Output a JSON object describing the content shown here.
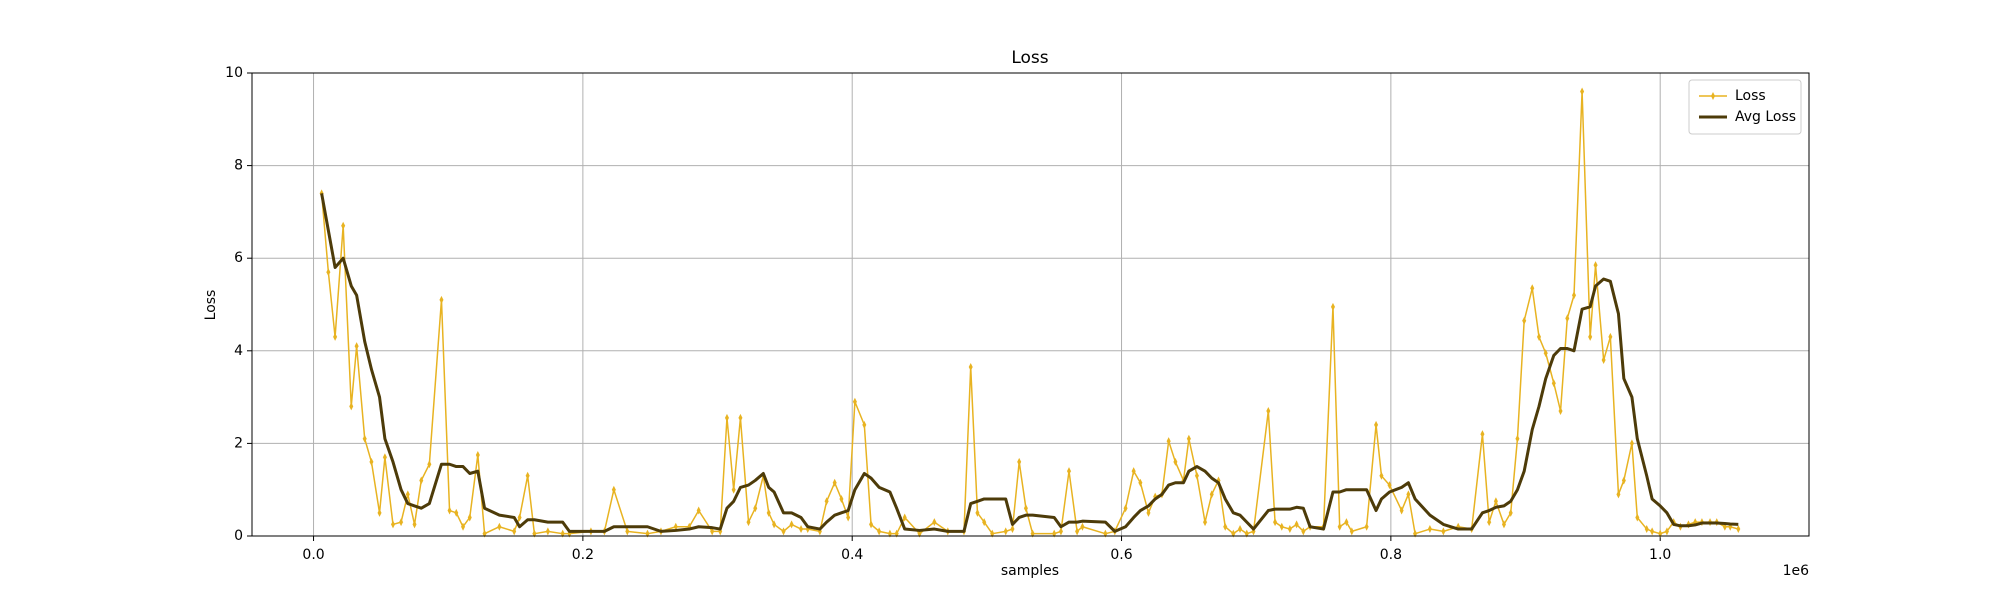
{
  "chart_data": {
    "type": "line",
    "title": "Loss",
    "xlabel": "samples",
    "ylabel": "Loss",
    "xaxis_offset": "1e6",
    "x": [
      6000,
      11000,
      16000,
      22000,
      28000,
      32000,
      38000,
      43000,
      49000,
      53000,
      59000,
      65000,
      70000,
      75000,
      80000,
      86000,
      95000,
      101000,
      106000,
      111000,
      116000,
      122000,
      127000,
      138000,
      149000,
      153000,
      159000,
      164000,
      174000,
      185000,
      190000,
      206000,
      216000,
      223000,
      233000,
      248000,
      258000,
      269000,
      279000,
      286000,
      296000,
      302000,
      307000,
      312000,
      317000,
      323000,
      328000,
      334000,
      338000,
      342000,
      349000,
      355000,
      362000,
      367000,
      376000,
      381000,
      387000,
      392000,
      397000,
      402000,
      409000,
      414000,
      420000,
      428000,
      433000,
      439000,
      450000,
      461000,
      471000,
      483000,
      488000,
      493000,
      498000,
      504000,
      514000,
      519000,
      524000,
      529000,
      534000,
      550000,
      555000,
      561000,
      567000,
      571000,
      588000,
      595000,
      603000,
      609000,
      614000,
      620000,
      625000,
      630000,
      635000,
      640000,
      646000,
      650000,
      656000,
      662000,
      667000,
      672000,
      677000,
      683000,
      688000,
      693000,
      698000,
      709000,
      714000,
      719000,
      725000,
      730000,
      735000,
      740000,
      750000,
      757000,
      762000,
      767000,
      771000,
      782000,
      789000,
      793000,
      799000,
      808000,
      813000,
      818000,
      829000,
      839000,
      850000,
      860000,
      868000,
      873000,
      878000,
      884000,
      889000,
      894000,
      899000,
      905000,
      910000,
      915000,
      921000,
      926000,
      931000,
      936000,
      942000,
      948000,
      952000,
      958000,
      963000,
      969000,
      973000,
      979000,
      983000,
      990000,
      994000,
      1000000,
      1005000,
      1010000,
      1015000,
      1021000,
      1026000,
      1031000,
      1037000,
      1042000,
      1048000,
      1052000,
      1058000
    ],
    "series": [
      {
        "name": "Loss",
        "color": "#e8b321",
        "marker": "diamond",
        "values": [
          7.4,
          5.7,
          4.3,
          6.7,
          2.8,
          4.1,
          2.1,
          1.6,
          0.5,
          1.7,
          0.25,
          0.3,
          0.9,
          0.25,
          1.2,
          1.55,
          5.1,
          0.55,
          0.5,
          0.2,
          0.4,
          1.75,
          0.05,
          0.2,
          0.1,
          0.4,
          1.3,
          0.05,
          0.1,
          0.05,
          0.05,
          0.1,
          0.1,
          1.0,
          0.1,
          0.05,
          0.1,
          0.2,
          0.2,
          0.55,
          0.1,
          0.1,
          2.55,
          1.0,
          2.55,
          0.3,
          0.6,
          1.3,
          0.5,
          0.25,
          0.1,
          0.25,
          0.15,
          0.15,
          0.1,
          0.75,
          1.15,
          0.8,
          0.4,
          2.9,
          2.4,
          0.25,
          0.1,
          0.05,
          0.05,
          0.4,
          0.05,
          0.3,
          0.1,
          0.1,
          3.65,
          0.5,
          0.3,
          0.05,
          0.1,
          0.15,
          1.6,
          0.6,
          0.05,
          0.05,
          0.1,
          1.4,
          0.1,
          0.2,
          0.05,
          0.1,
          0.6,
          1.4,
          1.15,
          0.5,
          0.85,
          0.9,
          2.05,
          1.6,
          1.2,
          2.1,
          1.3,
          0.3,
          0.9,
          1.2,
          0.2,
          0.05,
          0.15,
          0.05,
          0.1,
          2.7,
          0.3,
          0.2,
          0.15,
          0.25,
          0.1,
          0.2,
          0.2,
          4.95,
          0.2,
          0.3,
          0.1,
          0.2,
          2.4,
          1.3,
          1.1,
          0.55,
          0.9,
          0.05,
          0.15,
          0.1,
          0.2,
          0.15,
          2.2,
          0.3,
          0.75,
          0.25,
          0.5,
          2.1,
          4.65,
          5.35,
          4.3,
          3.95,
          3.3,
          2.7,
          4.7,
          5.2,
          9.6,
          4.3,
          5.85,
          3.8,
          4.3,
          0.9,
          1.2,
          2.0,
          0.4,
          0.15,
          0.1,
          0.05,
          0.1,
          0.3,
          0.2,
          0.25,
          0.3,
          0.3,
          0.3,
          0.3,
          0.2,
          0.2,
          0.15
        ]
      },
      {
        "name": "Avg Loss",
        "color": "#4d3b09",
        "values": [
          7.4,
          6.6,
          5.8,
          6.0,
          5.4,
          5.2,
          4.2,
          3.6,
          3.0,
          2.1,
          1.6,
          1.0,
          0.7,
          0.65,
          0.6,
          0.7,
          1.55,
          1.55,
          1.5,
          1.5,
          1.35,
          1.4,
          0.6,
          0.45,
          0.4,
          0.2,
          0.35,
          0.35,
          0.3,
          0.3,
          0.1,
          0.1,
          0.1,
          0.2,
          0.2,
          0.2,
          0.1,
          0.12,
          0.15,
          0.2,
          0.18,
          0.15,
          0.6,
          0.75,
          1.05,
          1.1,
          1.2,
          1.35,
          1.05,
          0.95,
          0.5,
          0.5,
          0.4,
          0.2,
          0.15,
          0.3,
          0.45,
          0.5,
          0.55,
          1.0,
          1.35,
          1.25,
          1.05,
          0.95,
          0.6,
          0.15,
          0.12,
          0.15,
          0.1,
          0.1,
          0.7,
          0.75,
          0.8,
          0.8,
          0.8,
          0.25,
          0.4,
          0.45,
          0.45,
          0.4,
          0.2,
          0.3,
          0.3,
          0.32,
          0.3,
          0.1,
          0.2,
          0.4,
          0.55,
          0.65,
          0.8,
          0.9,
          1.1,
          1.15,
          1.15,
          1.4,
          1.5,
          1.4,
          1.25,
          1.15,
          0.8,
          0.5,
          0.45,
          0.3,
          0.15,
          0.55,
          0.58,
          0.58,
          0.58,
          0.62,
          0.6,
          0.2,
          0.15,
          0.95,
          0.95,
          1.0,
          1.0,
          1.0,
          0.55,
          0.8,
          0.95,
          1.05,
          1.15,
          0.8,
          0.45,
          0.25,
          0.15,
          0.15,
          0.5,
          0.55,
          0.62,
          0.65,
          0.75,
          1.0,
          1.4,
          2.3,
          2.8,
          3.4,
          3.9,
          4.05,
          4.05,
          4.0,
          4.9,
          4.95,
          5.4,
          5.55,
          5.5,
          4.8,
          3.4,
          3.0,
          2.1,
          1.3,
          0.8,
          0.65,
          0.5,
          0.25,
          0.22,
          0.22,
          0.24,
          0.28,
          0.28,
          0.28,
          0.27,
          0.26,
          0.25
        ]
      }
    ],
    "xlim": [
      -45700,
      1110500
    ],
    "xticks": [
      {
        "value": 0,
        "label": "0.0"
      },
      {
        "value": 200000,
        "label": "0.2"
      },
      {
        "value": 400000,
        "label": "0.4"
      },
      {
        "value": 600000,
        "label": "0.6"
      },
      {
        "value": 800000,
        "label": "0.8"
      },
      {
        "value": 1000000,
        "label": "1.0"
      }
    ],
    "ylim": [
      0,
      10
    ],
    "yticks": [
      0,
      2,
      4,
      6,
      8,
      10
    ],
    "grid": true,
    "legend": "upper right"
  }
}
